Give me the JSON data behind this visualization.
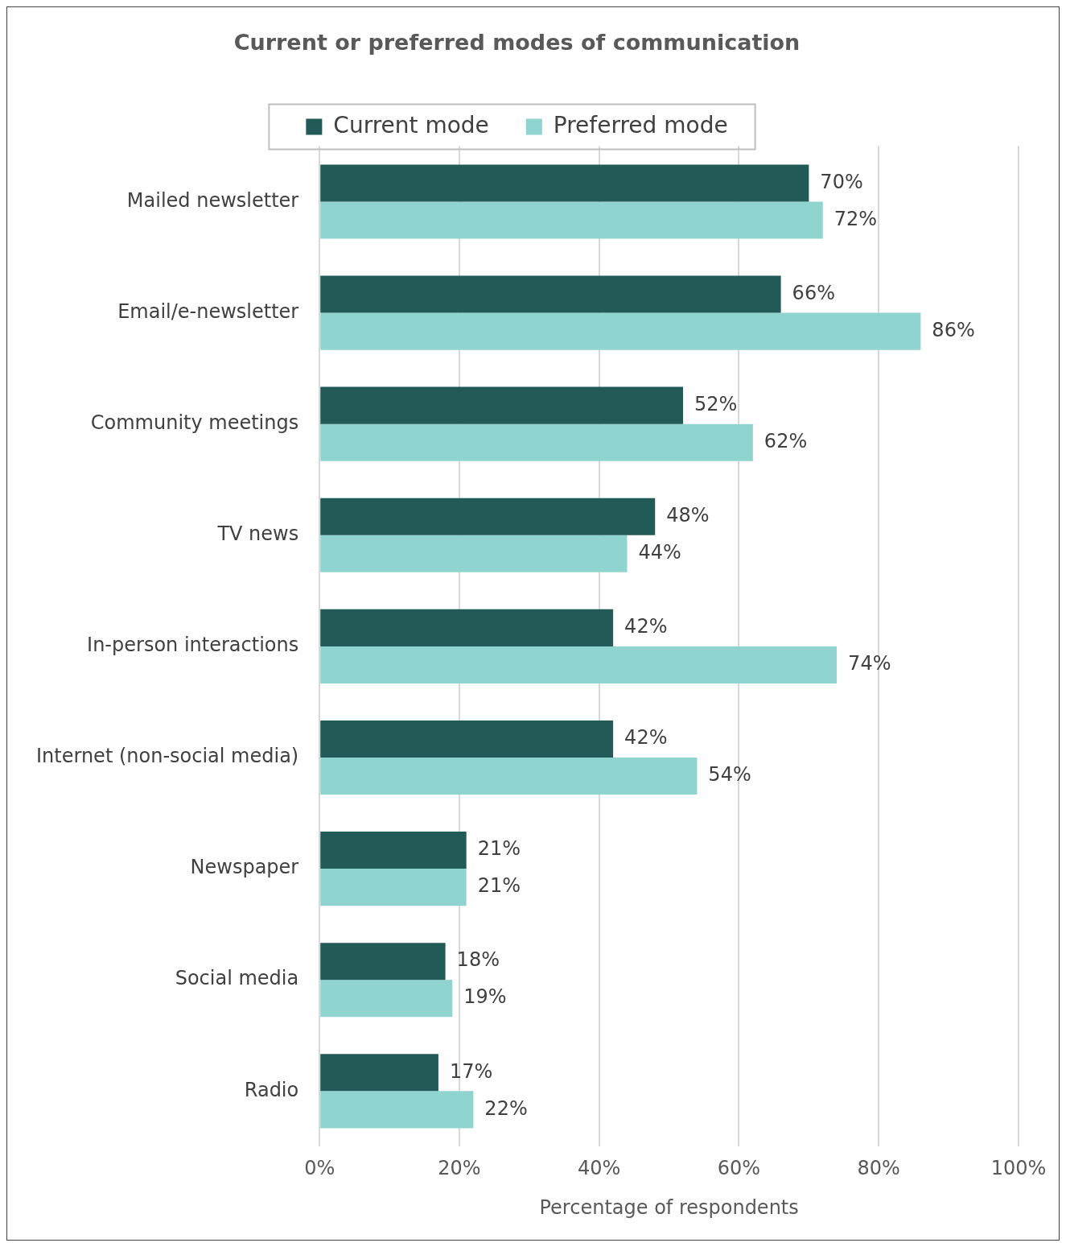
{
  "chart_data": {
    "type": "bar",
    "orientation": "horizontal",
    "title": "Current or preferred modes of communication",
    "xlabel": "Percentage of respondents",
    "categories": [
      "Mailed newsletter",
      "Email/e-newsletter",
      "Community meetings",
      "TV news",
      "In-person interactions",
      "Internet (non-social media)",
      "Newspaper",
      "Social media",
      "Radio"
    ],
    "series": [
      {
        "name": "Current mode",
        "color": "#225a57",
        "values": [
          70,
          66,
          52,
          48,
          42,
          42,
          21,
          18,
          17
        ],
        "value_labels": [
          "70%",
          "66%",
          "52%",
          "48%",
          "42%",
          "42%",
          "21%",
          "18%",
          "17%"
        ]
      },
      {
        "name": "Preferred mode",
        "color": "#8fd4cf",
        "values": [
          72,
          86,
          62,
          44,
          74,
          54,
          21,
          19,
          22
        ],
        "value_labels": [
          "72%",
          "86%",
          "62%",
          "44%",
          "74%",
          "54%",
          "21%",
          "19%",
          "22%"
        ]
      }
    ],
    "xlim": [
      0,
      100
    ],
    "xticks": [
      {
        "value": 0,
        "label": "0%"
      },
      {
        "value": 20,
        "label": "20%"
      },
      {
        "value": 40,
        "label": "40%"
      },
      {
        "value": 60,
        "label": "60%"
      },
      {
        "value": 80,
        "label": "80%"
      },
      {
        "value": 100,
        "label": "100%"
      }
    ],
    "grid": "x",
    "legend": "top"
  }
}
